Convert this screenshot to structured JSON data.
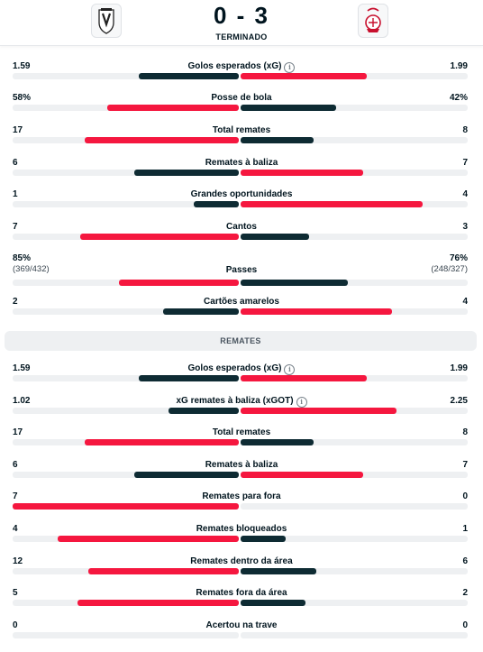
{
  "match": {
    "score": "0 - 3",
    "status": "TERMINADO"
  },
  "colors": {
    "winner": "#f5173f",
    "loser": "#0e2b33",
    "track": "#eef0f2"
  },
  "section_remates": {
    "title": "REMATES"
  },
  "general_stats": [
    {
      "label": "Golos esperados (xG)",
      "home": "1.59",
      "away": "1.99",
      "home_value": 1.59,
      "away_value": 1.99,
      "info": true
    },
    {
      "label": "Posse de bola",
      "home": "58%",
      "away": "42%",
      "home_value": 58,
      "away_value": 42
    },
    {
      "label": "Total remates",
      "home": "17",
      "away": "8",
      "home_value": 17,
      "away_value": 8
    },
    {
      "label": "Remates à baliza",
      "home": "6",
      "away": "7",
      "home_value": 6,
      "away_value": 7
    },
    {
      "label": "Grandes oportunidades",
      "home": "1",
      "away": "4",
      "home_value": 1,
      "away_value": 4
    },
    {
      "label": "Cantos",
      "home": "7",
      "away": "3",
      "home_value": 7,
      "away_value": 3
    },
    {
      "label": "Passes",
      "home": "85%",
      "away": "76%",
      "home_sub": "(369/432)",
      "away_sub": "(248/327)",
      "home_value": 85,
      "away_value": 76
    },
    {
      "label": "Cartões amarelos",
      "home": "2",
      "away": "4",
      "home_value": 2,
      "away_value": 4
    }
  ],
  "shot_stats": [
    {
      "label": "Golos esperados (xG)",
      "home": "1.59",
      "away": "1.99",
      "home_value": 1.59,
      "away_value": 1.99,
      "info": true
    },
    {
      "label": "xG remates à baliza (xGOT)",
      "home": "1.02",
      "away": "2.25",
      "home_value": 1.02,
      "away_value": 2.25,
      "info": true
    },
    {
      "label": "Total remates",
      "home": "17",
      "away": "8",
      "home_value": 17,
      "away_value": 8
    },
    {
      "label": "Remates à baliza",
      "home": "6",
      "away": "7",
      "home_value": 6,
      "away_value": 7
    },
    {
      "label": "Remates para fora",
      "home": "7",
      "away": "0",
      "home_value": 7,
      "away_value": 0
    },
    {
      "label": "Remates bloqueados",
      "home": "4",
      "away": "1",
      "home_value": 4,
      "away_value": 1
    },
    {
      "label": "Remates dentro da área",
      "home": "12",
      "away": "6",
      "home_value": 12,
      "away_value": 6
    },
    {
      "label": "Remates fora da área",
      "home": "5",
      "away": "2",
      "home_value": 5,
      "away_value": 2
    },
    {
      "label": "Acertou na trave",
      "home": "0",
      "away": "0",
      "home_value": 0,
      "away_value": 0
    }
  ]
}
